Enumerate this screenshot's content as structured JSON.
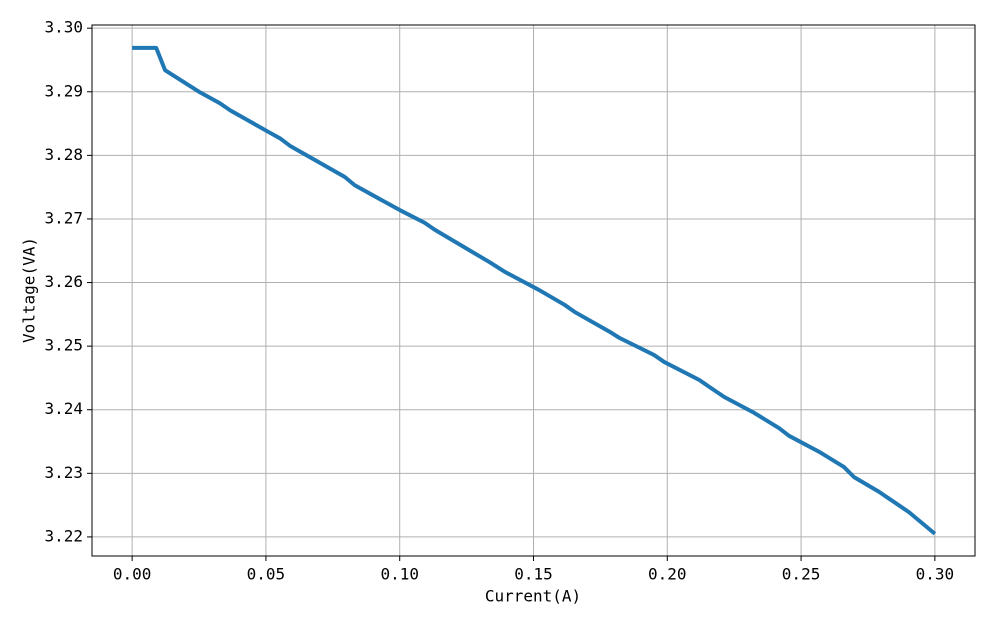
{
  "chart_data": {
    "type": "line",
    "x_label": "Current(A)",
    "y_label": "Voltage(VA)",
    "x": [
      0,
      0.009,
      0.0123,
      0.0254,
      0.0328,
      0.0366,
      0.0496,
      0.0552,
      0.059,
      0.0795,
      0.0832,
      0.1,
      0.1093,
      0.1131,
      0.1336,
      0.1392,
      0.1522,
      0.1616,
      0.1653,
      0.1791,
      0.1821,
      0.1951,
      0.1989,
      0.2119,
      0.2157,
      0.2213,
      0.2325,
      0.2418,
      0.2455,
      0.2567,
      0.266,
      0.2698,
      0.2791,
      0.2903,
      0.3
    ],
    "series": [
      {
        "color": "#1f77b4",
        "values": [
          3.2969,
          3.2969,
          3.2934,
          3.2899,
          3.2882,
          3.2871,
          3.284,
          3.2827,
          3.2815,
          3.2766,
          3.2753,
          3.2714,
          3.2694,
          3.2683,
          3.2632,
          3.2617,
          3.2588,
          3.2565,
          3.2554,
          3.2521,
          3.2513,
          3.2486,
          3.2475,
          3.2447,
          3.2436,
          3.242,
          3.2395,
          3.2371,
          3.2359,
          3.2334,
          3.231,
          3.2294,
          3.2271,
          3.2239,
          3.2205
        ]
      }
    ],
    "xlim": [
      -0.015,
      0.315
    ],
    "ylim": [
      3.217,
      3.3005
    ],
    "xticks": [
      {
        "value": 0,
        "label": "0.00"
      },
      {
        "value": 0.05,
        "label": "0.05"
      },
      {
        "value": 0.1,
        "label": "0.10"
      },
      {
        "value": 0.15,
        "label": "0.15"
      },
      {
        "value": 0.2,
        "label": "0.20"
      },
      {
        "value": 0.25,
        "label": "0.25"
      },
      {
        "value": 0.3,
        "label": "0.30"
      }
    ],
    "yticks": [
      {
        "value": 3.22,
        "label": "3.22"
      },
      {
        "value": 3.23,
        "label": "3.23"
      },
      {
        "value": 3.24,
        "label": "3.24"
      },
      {
        "value": 3.25,
        "label": "3.25"
      },
      {
        "value": 3.26,
        "label": "3.26"
      },
      {
        "value": 3.27,
        "label": "3.27"
      },
      {
        "value": 3.28,
        "label": "3.28"
      },
      {
        "value": 3.29,
        "label": "3.29"
      },
      {
        "value": 3.3,
        "label": "3.30"
      }
    ],
    "grid": true
  }
}
